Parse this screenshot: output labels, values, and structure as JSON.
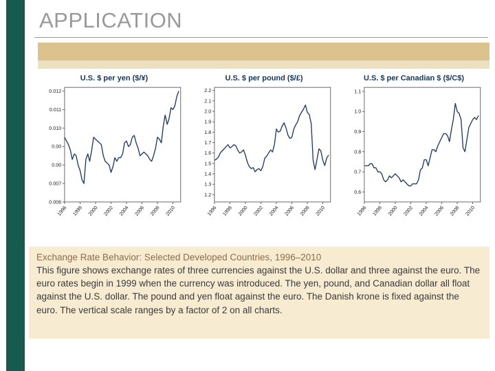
{
  "slide": {
    "title": "APPLICATION"
  },
  "caption": {
    "heading": "Exchange Rate Behavior: Selected Developed Countries, 1996–2010",
    "body": "This figure shows exchange rates of three currencies against the U.S. dollar and three against the euro. The euro rates begin in 1999 when the currency was introduced. The yen, pound, and Canadian dollar all float against the U.S. dollar. The pound and yen float against the euro. The Danish krone is fixed against the euro. The vertical scale ranges by a factor of 2 on all charts."
  },
  "colors": {
    "accent_bar": "#175a4e",
    "band": "#dcc28d",
    "band_light": "#ece0bf",
    "caption_bg": "#f7ecd1",
    "line": "#1f3864",
    "chart_title": "#17365d",
    "heading_text": "#8a6d46",
    "title_text": "#999999",
    "rule": "#9a9a9a"
  },
  "chart_data": [
    {
      "type": "line",
      "title": "U.S. $ per yen ($/¥)",
      "grid": false,
      "xlim": [
        1996,
        2011
      ],
      "ylim": [
        0.006,
        0.0122
      ],
      "xticks": [
        1996,
        1998,
        2000,
        2002,
        2004,
        2006,
        2008,
        2010
      ],
      "ytick_values": [
        0.012,
        0.011,
        0.01,
        0.009,
        0.008,
        0.007,
        0.006
      ],
      "ytick_labels": [
        "0.012",
        "0.011",
        "0.010",
        "0.00",
        "0.00",
        "0.007",
        "0.006"
      ],
      "x": [
        1996,
        1996.25,
        1996.5,
        1996.75,
        1997,
        1997.25,
        1997.5,
        1997.75,
        1998,
        1998.25,
        1998.5,
        1998.75,
        1999,
        1999.25,
        1999.5,
        1999.75,
        2000,
        2000.25,
        2000.5,
        2000.75,
        2001,
        2001.25,
        2001.5,
        2001.75,
        2002,
        2002.25,
        2002.5,
        2002.75,
        2003,
        2003.25,
        2003.5,
        2003.75,
        2004,
        2004.25,
        2004.5,
        2004.75,
        2005,
        2005.25,
        2005.5,
        2005.75,
        2006,
        2006.25,
        2006.5,
        2006.75,
        2007,
        2007.25,
        2007.5,
        2007.75,
        2008,
        2008.25,
        2008.5,
        2008.75,
        2009,
        2009.25,
        2009.5,
        2009.75,
        2010,
        2010.25,
        2010.5,
        2010.75
      ],
      "y": [
        0.0095,
        0.0093,
        0.0091,
        0.0088,
        0.0083,
        0.0086,
        0.0085,
        0.008,
        0.0077,
        0.0072,
        0.007,
        0.0083,
        0.0086,
        0.0082,
        0.0088,
        0.0095,
        0.0094,
        0.0093,
        0.0092,
        0.0091,
        0.0085,
        0.0082,
        0.0081,
        0.008,
        0.0076,
        0.0079,
        0.0084,
        0.0082,
        0.0084,
        0.0084,
        0.0086,
        0.0092,
        0.0093,
        0.009,
        0.0091,
        0.0095,
        0.0096,
        0.0092,
        0.0089,
        0.0085,
        0.0086,
        0.0087,
        0.0086,
        0.0085,
        0.0083,
        0.0082,
        0.0085,
        0.0089,
        0.0095,
        0.0094,
        0.0092,
        0.0101,
        0.0107,
        0.0102,
        0.0105,
        0.0111,
        0.011,
        0.0112,
        0.0117,
        0.012
      ]
    },
    {
      "type": "line",
      "title": "U.S. $ per pound ($/£)",
      "grid": false,
      "xlim": [
        1996,
        2011
      ],
      "ylim": [
        1.13,
        2.23
      ],
      "xticks": [
        1996,
        1998,
        2000,
        2002,
        2004,
        2006,
        2008,
        2010
      ],
      "ytick_values": [
        2.2,
        2.1,
        2.0,
        1.9,
        1.8,
        1.7,
        1.6,
        1.5,
        1.4,
        1.3,
        1.2
      ],
      "ytick_labels": [
        "2.2",
        "2.1",
        "2.0",
        "1.9",
        "1.8",
        "1.7",
        "1.6",
        "1.5",
        "1.4",
        "1.3",
        "1.2"
      ],
      "x": [
        1996,
        1996.25,
        1996.5,
        1996.75,
        1997,
        1997.25,
        1997.5,
        1997.75,
        1998,
        1998.25,
        1998.5,
        1998.75,
        1999,
        1999.25,
        1999.5,
        1999.75,
        2000,
        2000.25,
        2000.5,
        2000.75,
        2001,
        2001.25,
        2001.5,
        2001.75,
        2002,
        2002.25,
        2002.5,
        2002.75,
        2003,
        2003.25,
        2003.5,
        2003.75,
        2004,
        2004.25,
        2004.5,
        2004.75,
        2005,
        2005.25,
        2005.5,
        2005.75,
        2006,
        2006.25,
        2006.5,
        2006.75,
        2007,
        2007.25,
        2007.5,
        2007.75,
        2008,
        2008.25,
        2008.5,
        2008.75,
        2009,
        2009.25,
        2009.5,
        2009.75,
        2010,
        2010.25,
        2010.5,
        2010.75
      ],
      "y": [
        1.53,
        1.54,
        1.56,
        1.6,
        1.62,
        1.64,
        1.66,
        1.68,
        1.65,
        1.66,
        1.68,
        1.67,
        1.63,
        1.6,
        1.61,
        1.63,
        1.58,
        1.51,
        1.47,
        1.45,
        1.46,
        1.42,
        1.44,
        1.45,
        1.43,
        1.47,
        1.55,
        1.57,
        1.6,
        1.63,
        1.61,
        1.68,
        1.83,
        1.8,
        1.81,
        1.86,
        1.89,
        1.84,
        1.77,
        1.74,
        1.75,
        1.83,
        1.87,
        1.9,
        1.96,
        1.99,
        2.02,
        2.06,
        1.99,
        1.97,
        1.88,
        1.53,
        1.44,
        1.54,
        1.64,
        1.62,
        1.53,
        1.48,
        1.55,
        1.58
      ]
    },
    {
      "type": "line",
      "title": "U.S. $ per Canadian $ ($/C$)",
      "grid": false,
      "xlim": [
        1996,
        2011
      ],
      "ylim": [
        0.55,
        1.12
      ],
      "xticks": [
        1996,
        1998,
        2000,
        2002,
        2004,
        2006,
        2008,
        2010
      ],
      "ytick_values": [
        1.1,
        1.0,
        0.9,
        0.8,
        0.7,
        0.6
      ],
      "ytick_labels": [
        "1.1",
        "1.0",
        "0.9",
        "0.8",
        "0.7",
        "0.6"
      ],
      "x": [
        1996,
        1996.25,
        1996.5,
        1996.75,
        1997,
        1997.25,
        1997.5,
        1997.75,
        1998,
        1998.25,
        1998.5,
        1998.75,
        1999,
        1999.25,
        1999.5,
        1999.75,
        2000,
        2000.25,
        2000.5,
        2000.75,
        2001,
        2001.25,
        2001.5,
        2001.75,
        2002,
        2002.25,
        2002.5,
        2002.75,
        2003,
        2003.25,
        2003.5,
        2003.75,
        2004,
        2004.25,
        2004.5,
        2004.75,
        2005,
        2005.25,
        2005.5,
        2005.75,
        2006,
        2006.25,
        2006.5,
        2006.75,
        2007,
        2007.25,
        2007.5,
        2007.75,
        2008,
        2008.25,
        2008.5,
        2008.75,
        2009,
        2009.25,
        2009.5,
        2009.75,
        2010,
        2010.25,
        2010.5,
        2010.75
      ],
      "y": [
        0.73,
        0.73,
        0.73,
        0.74,
        0.74,
        0.72,
        0.72,
        0.7,
        0.7,
        0.69,
        0.66,
        0.65,
        0.66,
        0.68,
        0.67,
        0.68,
        0.69,
        0.68,
        0.67,
        0.65,
        0.66,
        0.65,
        0.64,
        0.63,
        0.63,
        0.64,
        0.64,
        0.64,
        0.66,
        0.71,
        0.72,
        0.76,
        0.76,
        0.73,
        0.77,
        0.81,
        0.81,
        0.8,
        0.83,
        0.85,
        0.87,
        0.89,
        0.89,
        0.88,
        0.85,
        0.91,
        0.96,
        1.04,
        1.0,
        0.99,
        0.96,
        0.82,
        0.8,
        0.86,
        0.92,
        0.94,
        0.96,
        0.97,
        0.96,
        0.98
      ]
    }
  ]
}
